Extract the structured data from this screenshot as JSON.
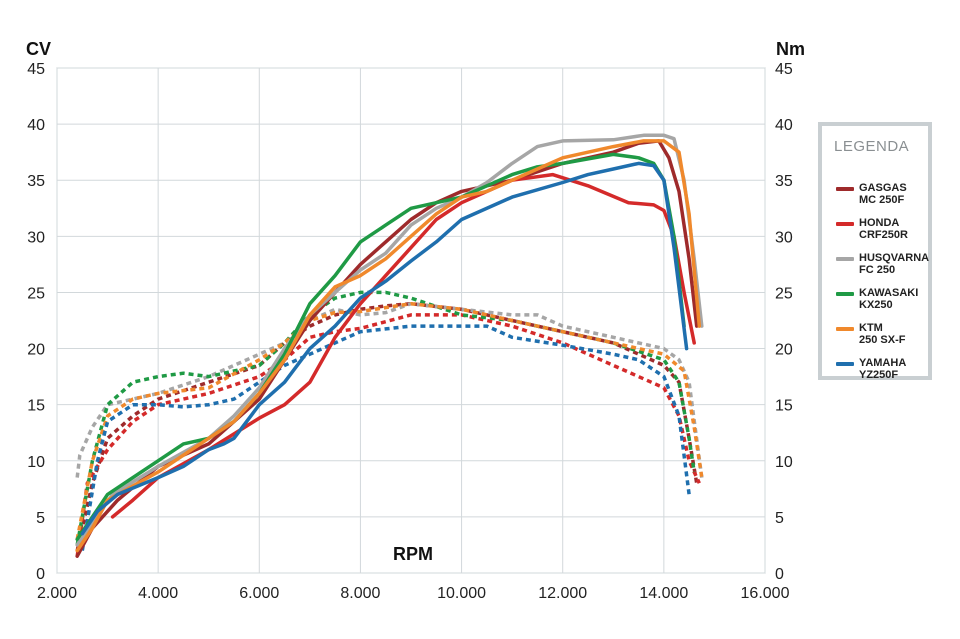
{
  "chart_data": {
    "type": "line",
    "left_axis_label": "CV",
    "right_axis_label": "Nm",
    "xlabel": "RPM",
    "xlim": [
      2000,
      16000
    ],
    "ylim": [
      0,
      45
    ],
    "x_ticks": [
      "2.000",
      "4.000",
      "6.000",
      "8.000",
      "10.000",
      "12.000",
      "14.000",
      "16.000"
    ],
    "y_ticks": [
      "0",
      "5",
      "10",
      "15",
      "20",
      "25",
      "30",
      "35",
      "40",
      "45"
    ],
    "grid": true,
    "legend_title": "LEGENDA",
    "legend_position": "right",
    "series": [
      {
        "name": "GASGAS\nMC 250F",
        "color": "#9e2a2b",
        "power": [
          [
            2400,
            1.5
          ],
          [
            2700,
            4
          ],
          [
            3200,
            6.5
          ],
          [
            4000,
            9.5
          ],
          [
            5000,
            11.5
          ],
          [
            6000,
            15.5
          ],
          [
            6500,
            19
          ],
          [
            7000,
            22.5
          ],
          [
            7500,
            25
          ],
          [
            8000,
            27.5
          ],
          [
            8500,
            29.5
          ],
          [
            9000,
            31.5
          ],
          [
            9500,
            33
          ],
          [
            10000,
            34
          ],
          [
            11000,
            35
          ],
          [
            12000,
            36.5
          ],
          [
            13000,
            37.5
          ],
          [
            13500,
            38.3
          ],
          [
            13900,
            38.5
          ],
          [
            14100,
            37
          ],
          [
            14300,
            34
          ],
          [
            14500,
            28
          ],
          [
            14650,
            22
          ]
        ],
        "torque": [
          [
            2400,
            2
          ],
          [
            2700,
            8
          ],
          [
            3000,
            12
          ],
          [
            3500,
            14
          ],
          [
            4000,
            15.5
          ],
          [
            5000,
            17
          ],
          [
            6000,
            18.5
          ],
          [
            6500,
            20.5
          ],
          [
            7000,
            22
          ],
          [
            7500,
            23
          ],
          [
            8000,
            23.5
          ],
          [
            8500,
            23.8
          ],
          [
            9000,
            24
          ],
          [
            10000,
            23.5
          ],
          [
            11000,
            22.5
          ],
          [
            12000,
            21.5
          ],
          [
            13000,
            20.5
          ],
          [
            14000,
            18.5
          ],
          [
            14300,
            17
          ],
          [
            14500,
            12
          ],
          [
            14650,
            8
          ]
        ]
      },
      {
        "name": "HONDA\nCRF250R",
        "color": "#d42a2a",
        "power": [
          [
            3100,
            5
          ],
          [
            3500,
            6.5
          ],
          [
            4000,
            8.5
          ],
          [
            5000,
            11
          ],
          [
            6000,
            13.8
          ],
          [
            6500,
            15
          ],
          [
            7000,
            17
          ],
          [
            7500,
            21
          ],
          [
            8000,
            24
          ],
          [
            8500,
            26.5
          ],
          [
            9000,
            29
          ],
          [
            9500,
            31.5
          ],
          [
            10000,
            33
          ],
          [
            11000,
            35
          ],
          [
            11800,
            35.5
          ],
          [
            12500,
            34.5
          ],
          [
            13300,
            33
          ],
          [
            13800,
            32.8
          ],
          [
            14000,
            32.3
          ],
          [
            14200,
            30
          ],
          [
            14400,
            25
          ],
          [
            14600,
            20.5
          ]
        ],
        "torque": [
          [
            2400,
            1.5
          ],
          [
            2600,
            8
          ],
          [
            3000,
            11
          ],
          [
            3500,
            13.5
          ],
          [
            4000,
            15
          ],
          [
            5000,
            16
          ],
          [
            6000,
            17.5
          ],
          [
            6500,
            19
          ],
          [
            7000,
            21
          ],
          [
            7500,
            21.5
          ],
          [
            8000,
            21.8
          ],
          [
            9000,
            23
          ],
          [
            10000,
            23
          ],
          [
            11000,
            22
          ],
          [
            12000,
            20.5
          ],
          [
            13000,
            18.5
          ],
          [
            14000,
            16.5
          ],
          [
            14300,
            14
          ],
          [
            14500,
            10
          ],
          [
            14700,
            8
          ]
        ]
      },
      {
        "name": "HUSQVARNA\nFC 250",
        "color": "#a6a6a6",
        "power": [
          [
            2400,
            2.5
          ],
          [
            2700,
            4.5
          ],
          [
            3100,
            7
          ],
          [
            4000,
            9.5
          ],
          [
            5000,
            12
          ],
          [
            5500,
            14
          ],
          [
            6000,
            16.5
          ],
          [
            6500,
            20
          ],
          [
            7000,
            23
          ],
          [
            7500,
            25
          ],
          [
            8000,
            27
          ],
          [
            8500,
            28.5
          ],
          [
            9000,
            31
          ],
          [
            9500,
            32.5
          ],
          [
            10000,
            33.5
          ],
          [
            10500,
            34.8
          ],
          [
            11000,
            36.5
          ],
          [
            11500,
            38
          ],
          [
            12000,
            38.5
          ],
          [
            13000,
            38.6
          ],
          [
            13600,
            39
          ],
          [
            14000,
            39
          ],
          [
            14200,
            38.7
          ],
          [
            14400,
            35
          ],
          [
            14600,
            28
          ],
          [
            14750,
            22
          ]
        ],
        "torque": [
          [
            2400,
            8.5
          ],
          [
            2450,
            10.5
          ],
          [
            2700,
            13
          ],
          [
            3000,
            15
          ],
          [
            3500,
            15.5
          ],
          [
            4000,
            16
          ],
          [
            5000,
            17.5
          ],
          [
            6000,
            19.5
          ],
          [
            6500,
            20.5
          ],
          [
            7000,
            22.5
          ],
          [
            7500,
            23.5
          ],
          [
            8000,
            23
          ],
          [
            8500,
            23.2
          ],
          [
            9000,
            24
          ],
          [
            10000,
            23.5
          ],
          [
            11000,
            23
          ],
          [
            11500,
            23
          ],
          [
            12000,
            22
          ],
          [
            13000,
            21
          ],
          [
            14000,
            20
          ],
          [
            14300,
            19
          ],
          [
            14500,
            17
          ],
          [
            14750,
            8.5
          ]
        ]
      },
      {
        "name": "KAWASAKI\nKX250",
        "color": "#1f9a45",
        "power": [
          [
            2400,
            3
          ],
          [
            2700,
            5
          ],
          [
            3000,
            7
          ],
          [
            4000,
            10
          ],
          [
            4500,
            11.5
          ],
          [
            5000,
            12
          ],
          [
            5500,
            13.5
          ],
          [
            6000,
            16
          ],
          [
            6500,
            19.5
          ],
          [
            7000,
            24
          ],
          [
            7500,
            26.5
          ],
          [
            8000,
            29.5
          ],
          [
            8500,
            31
          ],
          [
            9000,
            32.5
          ],
          [
            9500,
            33
          ],
          [
            10000,
            33.5
          ],
          [
            10500,
            34.5
          ],
          [
            11000,
            35.5
          ],
          [
            11500,
            36.2
          ],
          [
            12000,
            36.5
          ],
          [
            13000,
            37.3
          ],
          [
            13500,
            37
          ],
          [
            13800,
            36.5
          ],
          [
            14000,
            35
          ],
          [
            14200,
            30
          ],
          [
            14400,
            22
          ]
        ],
        "torque": [
          [
            2400,
            2.5
          ],
          [
            2700,
            10
          ],
          [
            3000,
            15
          ],
          [
            3500,
            17
          ],
          [
            4000,
            17.5
          ],
          [
            4500,
            17.8
          ],
          [
            5000,
            17.5
          ],
          [
            6000,
            18.5
          ],
          [
            6500,
            20.5
          ],
          [
            7000,
            23
          ],
          [
            7500,
            24.5
          ],
          [
            8000,
            25
          ],
          [
            8500,
            25
          ],
          [
            9000,
            24.5
          ],
          [
            10000,
            23
          ],
          [
            11000,
            22.5
          ],
          [
            12000,
            21.5
          ],
          [
            13000,
            20.5
          ],
          [
            14000,
            19
          ],
          [
            14300,
            17
          ],
          [
            14500,
            12
          ],
          [
            14600,
            9
          ]
        ]
      },
      {
        "name": "KTM\n250 SX-F",
        "color": "#f0892c",
        "power": [
          [
            2400,
            2
          ],
          [
            2700,
            4
          ],
          [
            3000,
            6.5
          ],
          [
            4000,
            9
          ],
          [
            5000,
            12
          ],
          [
            5500,
            13.5
          ],
          [
            6000,
            16
          ],
          [
            6500,
            19
          ],
          [
            7000,
            23
          ],
          [
            7500,
            25.5
          ],
          [
            8000,
            26.5
          ],
          [
            8500,
            28
          ],
          [
            9000,
            30
          ],
          [
            9500,
            32
          ],
          [
            10000,
            33.5
          ],
          [
            10500,
            34
          ],
          [
            11000,
            35
          ],
          [
            11500,
            36
          ],
          [
            12000,
            37
          ],
          [
            13000,
            38
          ],
          [
            13600,
            38.5
          ],
          [
            14000,
            38.5
          ],
          [
            14300,
            37.5
          ],
          [
            14500,
            32
          ],
          [
            14700,
            22
          ]
        ],
        "torque": [
          [
            2400,
            3
          ],
          [
            2700,
            10
          ],
          [
            3000,
            14
          ],
          [
            3500,
            15.5
          ],
          [
            4000,
            16
          ],
          [
            5000,
            16.5
          ],
          [
            6000,
            19
          ],
          [
            6500,
            20.5
          ],
          [
            7000,
            22.5
          ],
          [
            7500,
            23.2
          ],
          [
            8000,
            23.3
          ],
          [
            9000,
            24
          ],
          [
            10000,
            23.5
          ],
          [
            11000,
            22.5
          ],
          [
            12000,
            21.5
          ],
          [
            13000,
            20.5
          ],
          [
            14000,
            19.5
          ],
          [
            14400,
            18
          ],
          [
            14600,
            13
          ],
          [
            14750,
            8.5
          ]
        ]
      },
      {
        "name": "YAMAHA\nYZ250F",
        "color": "#1f6fae",
        "power": [
          [
            2500,
            3.5
          ],
          [
            2800,
            5.5
          ],
          [
            3200,
            7
          ],
          [
            4000,
            8.5
          ],
          [
            4500,
            9.5
          ],
          [
            5000,
            11
          ],
          [
            5300,
            11.5
          ],
          [
            5500,
            12
          ],
          [
            6000,
            15
          ],
          [
            6500,
            17
          ],
          [
            7000,
            20
          ],
          [
            7500,
            22
          ],
          [
            8000,
            24.5
          ],
          [
            8500,
            26
          ],
          [
            9000,
            27.8
          ],
          [
            9500,
            29.5
          ],
          [
            10000,
            31.5
          ],
          [
            11000,
            33.5
          ],
          [
            12000,
            34.8
          ],
          [
            12500,
            35.5
          ],
          [
            13000,
            36
          ],
          [
            13500,
            36.5
          ],
          [
            13800,
            36.3
          ],
          [
            14000,
            35
          ],
          [
            14200,
            29
          ],
          [
            14450,
            20
          ]
        ],
        "torque": [
          [
            2500,
            2
          ],
          [
            2800,
            10
          ],
          [
            3000,
            13.5
          ],
          [
            3500,
            15
          ],
          [
            4000,
            15
          ],
          [
            4500,
            14.8
          ],
          [
            5000,
            15
          ],
          [
            5500,
            15.5
          ],
          [
            6000,
            17
          ],
          [
            6500,
            18.5
          ],
          [
            7000,
            19.5
          ],
          [
            7500,
            20.5
          ],
          [
            8000,
            21.5
          ],
          [
            9000,
            22
          ],
          [
            10000,
            22
          ],
          [
            10500,
            22
          ],
          [
            11000,
            21
          ],
          [
            12000,
            20.3
          ],
          [
            13000,
            19.5
          ],
          [
            13500,
            19
          ],
          [
            14000,
            17.5
          ],
          [
            14300,
            14
          ],
          [
            14500,
            7
          ]
        ]
      }
    ]
  }
}
